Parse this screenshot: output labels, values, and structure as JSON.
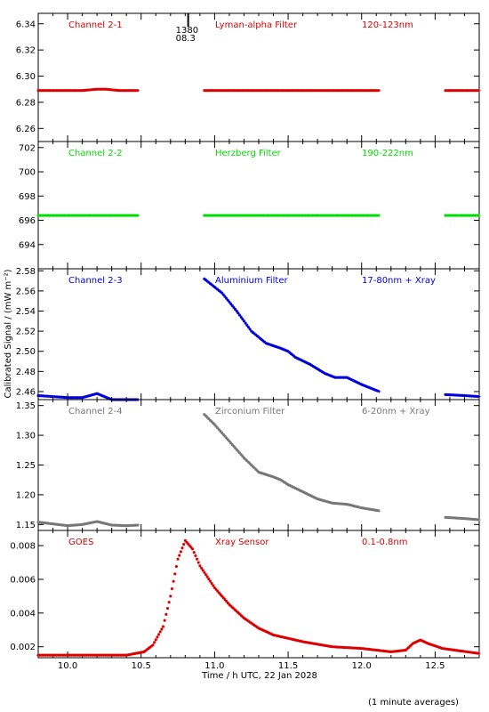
{
  "figure": {
    "ylabel": "Calibrated Signal / (mW m⁻²)",
    "xlabel": "Time / h UTC, 22 Jan 2028",
    "footnote": "(1 minute averages)",
    "flare_marker": {
      "time": 10.82,
      "label_top": "1380",
      "label_bottom": "08.3"
    }
  },
  "chart_data": [
    {
      "type": "scatter",
      "panel": "Channel 2-1",
      "labels": {
        "channel": "Channel 2-1",
        "filter": "Lyman-alpha Filter",
        "band": "120-123nm"
      },
      "color": "#dd0000",
      "xlim": [
        9.8,
        12.8
      ],
      "ylim": [
        6.25,
        6.348
      ],
      "ytick_values": [
        6.26,
        6.28,
        6.3,
        6.32,
        6.34
      ],
      "ytick_labels": [
        "6.26",
        "6.28",
        "6.30",
        "6.32",
        "6.34"
      ],
      "segments": [
        {
          "x_start": 9.8,
          "x_end": 10.48,
          "points": [
            [
              9.8,
              6.289
            ],
            [
              10.1,
              6.289
            ],
            [
              10.2,
              6.29
            ],
            [
              10.26,
              6.29
            ],
            [
              10.35,
              6.289
            ],
            [
              10.48,
              6.289
            ]
          ]
        },
        {
          "x_start": 10.93,
          "x_end": 12.12,
          "points": [
            [
              10.93,
              6.289
            ],
            [
              12.12,
              6.289
            ]
          ]
        },
        {
          "x_start": 12.57,
          "x_end": 12.8,
          "points": [
            [
              12.57,
              6.289
            ],
            [
              12.8,
              6.289
            ]
          ]
        }
      ]
    },
    {
      "type": "scatter",
      "panel": "Channel 2-2",
      "labels": {
        "channel": "Channel 2-2",
        "filter": "Herzberg Filter",
        "band": "190-222nm"
      },
      "color": "#00dd00",
      "xlim": [
        9.8,
        12.8
      ],
      "ylim": [
        692.0,
        702.5
      ],
      "ytick_values": [
        694,
        696,
        698,
        700,
        702
      ],
      "ytick_labels": [
        "694",
        "696",
        "698",
        "700",
        "702"
      ],
      "segments": [
        {
          "x_start": 9.8,
          "x_end": 10.48,
          "points": [
            [
              9.8,
              696.4
            ],
            [
              10.48,
              696.4
            ]
          ]
        },
        {
          "x_start": 10.93,
          "x_end": 12.12,
          "points": [
            [
              10.93,
              696.4
            ],
            [
              12.12,
              696.4
            ]
          ]
        },
        {
          "x_start": 12.57,
          "x_end": 12.8,
          "points": [
            [
              12.57,
              696.4
            ],
            [
              12.8,
              696.4
            ]
          ]
        }
      ]
    },
    {
      "type": "scatter",
      "panel": "Channel 2-3",
      "labels": {
        "channel": "Channel 2-3",
        "filter": "Aluminium Filter",
        "band": "17-80nm + Xray"
      },
      "color": "#0000dd",
      "xlim": [
        9.8,
        12.8
      ],
      "ylim": [
        2.452,
        2.582
      ],
      "ytick_values": [
        2.46,
        2.48,
        2.5,
        2.52,
        2.54,
        2.56,
        2.58
      ],
      "ytick_labels": [
        "2.46",
        "2.48",
        "2.50",
        "2.52",
        "2.54",
        "2.56",
        "2.58"
      ],
      "segments": [
        {
          "x_start": 9.8,
          "x_end": 10.48,
          "points": [
            [
              9.8,
              2.456
            ],
            [
              9.9,
              2.455
            ],
            [
              10.0,
              2.454
            ],
            [
              10.1,
              2.454
            ],
            [
              10.15,
              2.456
            ],
            [
              10.2,
              2.458
            ],
            [
              10.25,
              2.455
            ],
            [
              10.3,
              2.452
            ],
            [
              10.4,
              2.452
            ],
            [
              10.48,
              2.452
            ]
          ]
        },
        {
          "x_start": 10.93,
          "x_end": 12.12,
          "points": [
            [
              10.93,
              2.572
            ],
            [
              11.05,
              2.558
            ],
            [
              11.15,
              2.54
            ],
            [
              11.25,
              2.52
            ],
            [
              11.35,
              2.508
            ],
            [
              11.45,
              2.503
            ],
            [
              11.5,
              2.5
            ],
            [
              11.55,
              2.494
            ],
            [
              11.65,
              2.487
            ],
            [
              11.75,
              2.478
            ],
            [
              11.82,
              2.474
            ],
            [
              11.9,
              2.474
            ],
            [
              12.0,
              2.467
            ],
            [
              12.12,
              2.46
            ]
          ]
        },
        {
          "x_start": 12.57,
          "x_end": 12.8,
          "points": [
            [
              12.57,
              2.457
            ],
            [
              12.7,
              2.456
            ],
            [
              12.8,
              2.455
            ]
          ]
        }
      ]
    },
    {
      "type": "scatter",
      "panel": "Channel 2-4",
      "labels": {
        "channel": "Channel 2-4",
        "filter": "Zirconium Filter",
        "band": "6-20nm + Xray"
      },
      "color": "#777777",
      "xlim": [
        9.8,
        12.8
      ],
      "ylim": [
        1.14,
        1.36
      ],
      "ytick_values": [
        1.15,
        1.2,
        1.25,
        1.3,
        1.35
      ],
      "ytick_labels": [
        "1.15",
        "1.20",
        "1.25",
        "1.30",
        "1.35"
      ],
      "segments": [
        {
          "x_start": 9.8,
          "x_end": 10.48,
          "points": [
            [
              9.8,
              1.154
            ],
            [
              9.9,
              1.151
            ],
            [
              10.0,
              1.148
            ],
            [
              10.1,
              1.15
            ],
            [
              10.2,
              1.155
            ],
            [
              10.3,
              1.149
            ],
            [
              10.4,
              1.148
            ],
            [
              10.48,
              1.149
            ]
          ]
        },
        {
          "x_start": 10.93,
          "x_end": 12.12,
          "points": [
            [
              10.93,
              1.335
            ],
            [
              11.0,
              1.318
            ],
            [
              11.1,
              1.29
            ],
            [
              11.2,
              1.262
            ],
            [
              11.3,
              1.238
            ],
            [
              11.4,
              1.23
            ],
            [
              11.45,
              1.225
            ],
            [
              11.5,
              1.217
            ],
            [
              11.6,
              1.205
            ],
            [
              11.7,
              1.193
            ],
            [
              11.8,
              1.186
            ],
            [
              11.9,
              1.184
            ],
            [
              12.0,
              1.178
            ],
            [
              12.12,
              1.173
            ]
          ]
        },
        {
          "x_start": 12.57,
          "x_end": 12.8,
          "points": [
            [
              12.57,
              1.162
            ],
            [
              12.7,
              1.16
            ],
            [
              12.8,
              1.158
            ]
          ]
        }
      ]
    },
    {
      "type": "scatter",
      "panel": "GOES",
      "labels": {
        "channel": "GOES",
        "filter": "Xray Sensor",
        "band": "0.1-0.8nm"
      },
      "color": "#dd0000",
      "xlim": [
        9.8,
        12.8
      ],
      "ylim": [
        0.00135,
        0.0089
      ],
      "ytick_values": [
        0.002,
        0.004,
        0.006,
        0.008
      ],
      "ytick_labels": [
        "0.002",
        "0.004",
        "0.006",
        "0.008"
      ],
      "xtick_values": [
        10.0,
        10.5,
        11.0,
        11.5,
        12.0,
        12.5
      ],
      "xtick_labels": [
        "10.0",
        "10.5",
        "11.0",
        "11.5",
        "12.0",
        "12.5"
      ],
      "segments": [
        {
          "x_start": 9.8,
          "x_end": 12.8,
          "points": [
            [
              9.8,
              0.0015
            ],
            [
              10.4,
              0.0015
            ],
            [
              10.52,
              0.0017
            ],
            [
              10.58,
              0.0021
            ],
            [
              10.65,
              0.0032
            ],
            [
              10.7,
              0.005
            ],
            [
              10.75,
              0.0072
            ],
            [
              10.8,
              0.0083
            ],
            [
              10.85,
              0.0078
            ],
            [
              10.9,
              0.0068
            ],
            [
              11.0,
              0.0055
            ],
            [
              11.1,
              0.0045
            ],
            [
              11.2,
              0.0037
            ],
            [
              11.3,
              0.0031
            ],
            [
              11.4,
              0.0027
            ],
            [
              11.6,
              0.0023
            ],
            [
              11.8,
              0.002
            ],
            [
              12.0,
              0.0019
            ],
            [
              12.2,
              0.0017
            ],
            [
              12.3,
              0.0018
            ],
            [
              12.35,
              0.0022
            ],
            [
              12.4,
              0.0024
            ],
            [
              12.45,
              0.0022
            ],
            [
              12.55,
              0.0019
            ],
            [
              12.8,
              0.0016
            ]
          ]
        }
      ]
    }
  ]
}
